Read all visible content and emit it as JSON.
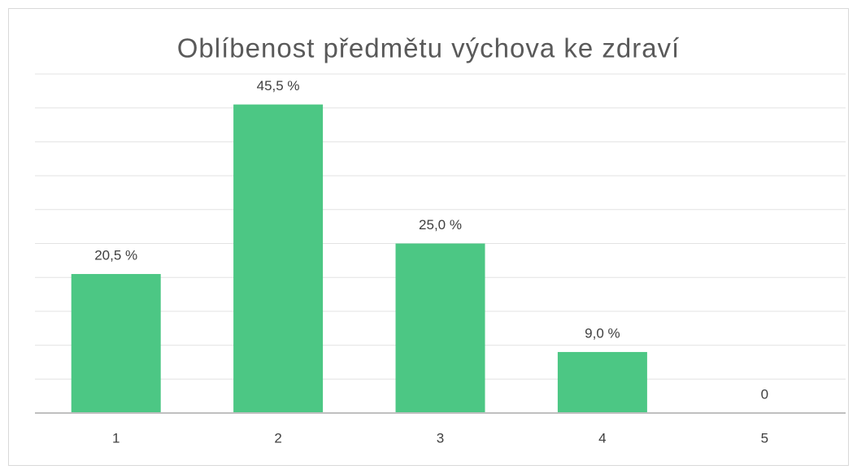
{
  "chart_data": {
    "type": "bar",
    "title": "Oblíbenost předmětu výchova ke zdraví",
    "categories": [
      "1",
      "2",
      "3",
      "4",
      "5"
    ],
    "values": [
      20.5,
      45.5,
      25,
      9,
      0
    ],
    "value_labels": [
      "20,5 %",
      "45,5 %",
      "25,0 %",
      "9,0 %",
      "0"
    ],
    "color": "#4cc784",
    "ylim": [
      0,
      50
    ],
    "yticks": [
      0,
      5,
      10,
      15,
      20,
      25,
      30,
      35,
      40,
      45,
      50
    ],
    "grid": true
  }
}
